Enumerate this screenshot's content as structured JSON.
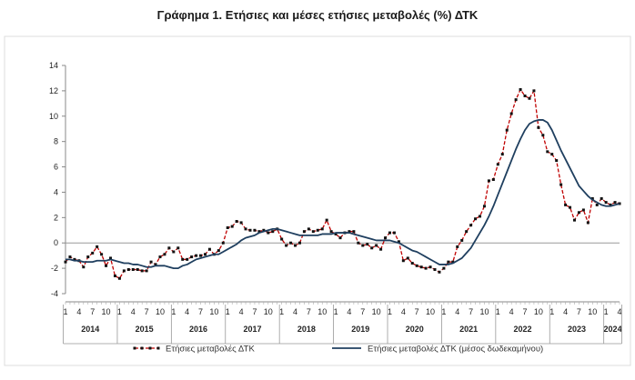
{
  "chart_data": {
    "type": "line",
    "title": "Γράφημα 1. Ετήσιες και μέσες ετήσιες μεταβολές (%) ΔΤΚ",
    "ylim": [
      -4,
      14
    ],
    "yticks": [
      -4,
      -2,
      0,
      2,
      4,
      6,
      8,
      10,
      12,
      14
    ],
    "grid": false,
    "legend_position": "bottom",
    "x_start": "2014-01",
    "month_tick_labels": [
      "1",
      "4",
      "7",
      "10"
    ],
    "years": [
      "2014",
      "2015",
      "2016",
      "2017",
      "2018",
      "2019",
      "2020",
      "2021",
      "2022",
      "2023",
      "2024"
    ],
    "series": [
      {
        "name": "Ετήσιες μεταβολές ΔΤΚ",
        "color": "#c00000",
        "style": "dashed-markers",
        "values": [
          -1.5,
          -1.1,
          -1.3,
          -1.4,
          -1.9,
          -1.1,
          -0.8,
          -0.3,
          -0.9,
          -1.8,
          -1.2,
          -2.6,
          -2.8,
          -2.2,
          -2.1,
          -2.1,
          -2.1,
          -2.2,
          -2.2,
          -1.5,
          -1.7,
          -1.1,
          -0.9,
          -0.4,
          -0.7,
          -0.4,
          -1.3,
          -1.3,
          -1.1,
          -1.0,
          -1.0,
          -0.9,
          -0.5,
          -0.9,
          -0.6,
          0.0,
          1.2,
          1.3,
          1.7,
          1.6,
          1.1,
          1.0,
          1.0,
          0.9,
          1.0,
          0.8,
          0.9,
          1.1,
          0.3,
          -0.2,
          0.0,
          -0.2,
          0.0,
          0.9,
          1.1,
          0.9,
          1.0,
          1.1,
          1.8,
          0.9,
          0.7,
          0.4,
          0.8,
          0.9,
          0.9,
          0.0,
          -0.2,
          -0.1,
          -0.4,
          -0.2,
          -0.5,
          0.4,
          0.8,
          0.8,
          0.1,
          -1.4,
          -1.2,
          -1.6,
          -1.8,
          -1.9,
          -2.0,
          -1.9,
          -2.1,
          -2.3,
          -2.0,
          -1.5,
          -1.5,
          -0.3,
          0.2,
          0.9,
          1.4,
          1.9,
          2.1,
          2.9,
          4.9,
          5.0,
          6.2,
          7.0,
          8.9,
          10.2,
          11.3,
          12.1,
          11.6,
          11.4,
          12.0,
          9.1,
          8.5,
          7.2,
          7.0,
          6.5,
          4.6,
          3.0,
          2.8,
          1.8,
          2.4,
          2.6,
          1.6,
          3.5,
          3.0,
          3.5,
          3.2,
          3.0,
          3.2,
          3.1
        ]
      },
      {
        "name": "Ετήσιες μεταβολές ΔΤΚ (μέσος δωδεκαμήνου)",
        "color": "#1f3f5f",
        "style": "solid",
        "values": [
          -1.3,
          -1.3,
          -1.4,
          -1.4,
          -1.5,
          -1.5,
          -1.5,
          -1.4,
          -1.4,
          -1.4,
          -1.3,
          -1.4,
          -1.5,
          -1.6,
          -1.6,
          -1.7,
          -1.7,
          -1.8,
          -1.9,
          -1.9,
          -1.8,
          -1.8,
          -1.8,
          -1.9,
          -2.0,
          -2.0,
          -1.8,
          -1.7,
          -1.5,
          -1.3,
          -1.2,
          -1.1,
          -1.0,
          -0.9,
          -0.9,
          -0.7,
          -0.5,
          -0.3,
          -0.1,
          0.2,
          0.4,
          0.5,
          0.6,
          0.8,
          0.9,
          1.0,
          1.1,
          1.1,
          1.0,
          0.9,
          0.8,
          0.7,
          0.6,
          0.6,
          0.6,
          0.6,
          0.6,
          0.7,
          0.7,
          0.7,
          0.8,
          0.8,
          0.8,
          0.8,
          0.7,
          0.6,
          0.5,
          0.4,
          0.3,
          0.2,
          0.2,
          0.2,
          0.2,
          0.1,
          0.0,
          -0.2,
          -0.4,
          -0.6,
          -0.7,
          -0.9,
          -1.1,
          -1.3,
          -1.5,
          -1.7,
          -1.7,
          -1.7,
          -1.6,
          -1.4,
          -1.2,
          -0.8,
          -0.4,
          0.2,
          0.8,
          1.4,
          2.1,
          2.9,
          3.8,
          4.7,
          5.6,
          6.5,
          7.4,
          8.2,
          8.9,
          9.4,
          9.6,
          9.7,
          9.7,
          9.5,
          8.9,
          8.1,
          7.3,
          6.6,
          5.9,
          5.2,
          4.5,
          4.1,
          3.7,
          3.4,
          3.2,
          3.0,
          2.9,
          2.9,
          3.0,
          3.1
        ]
      }
    ]
  }
}
